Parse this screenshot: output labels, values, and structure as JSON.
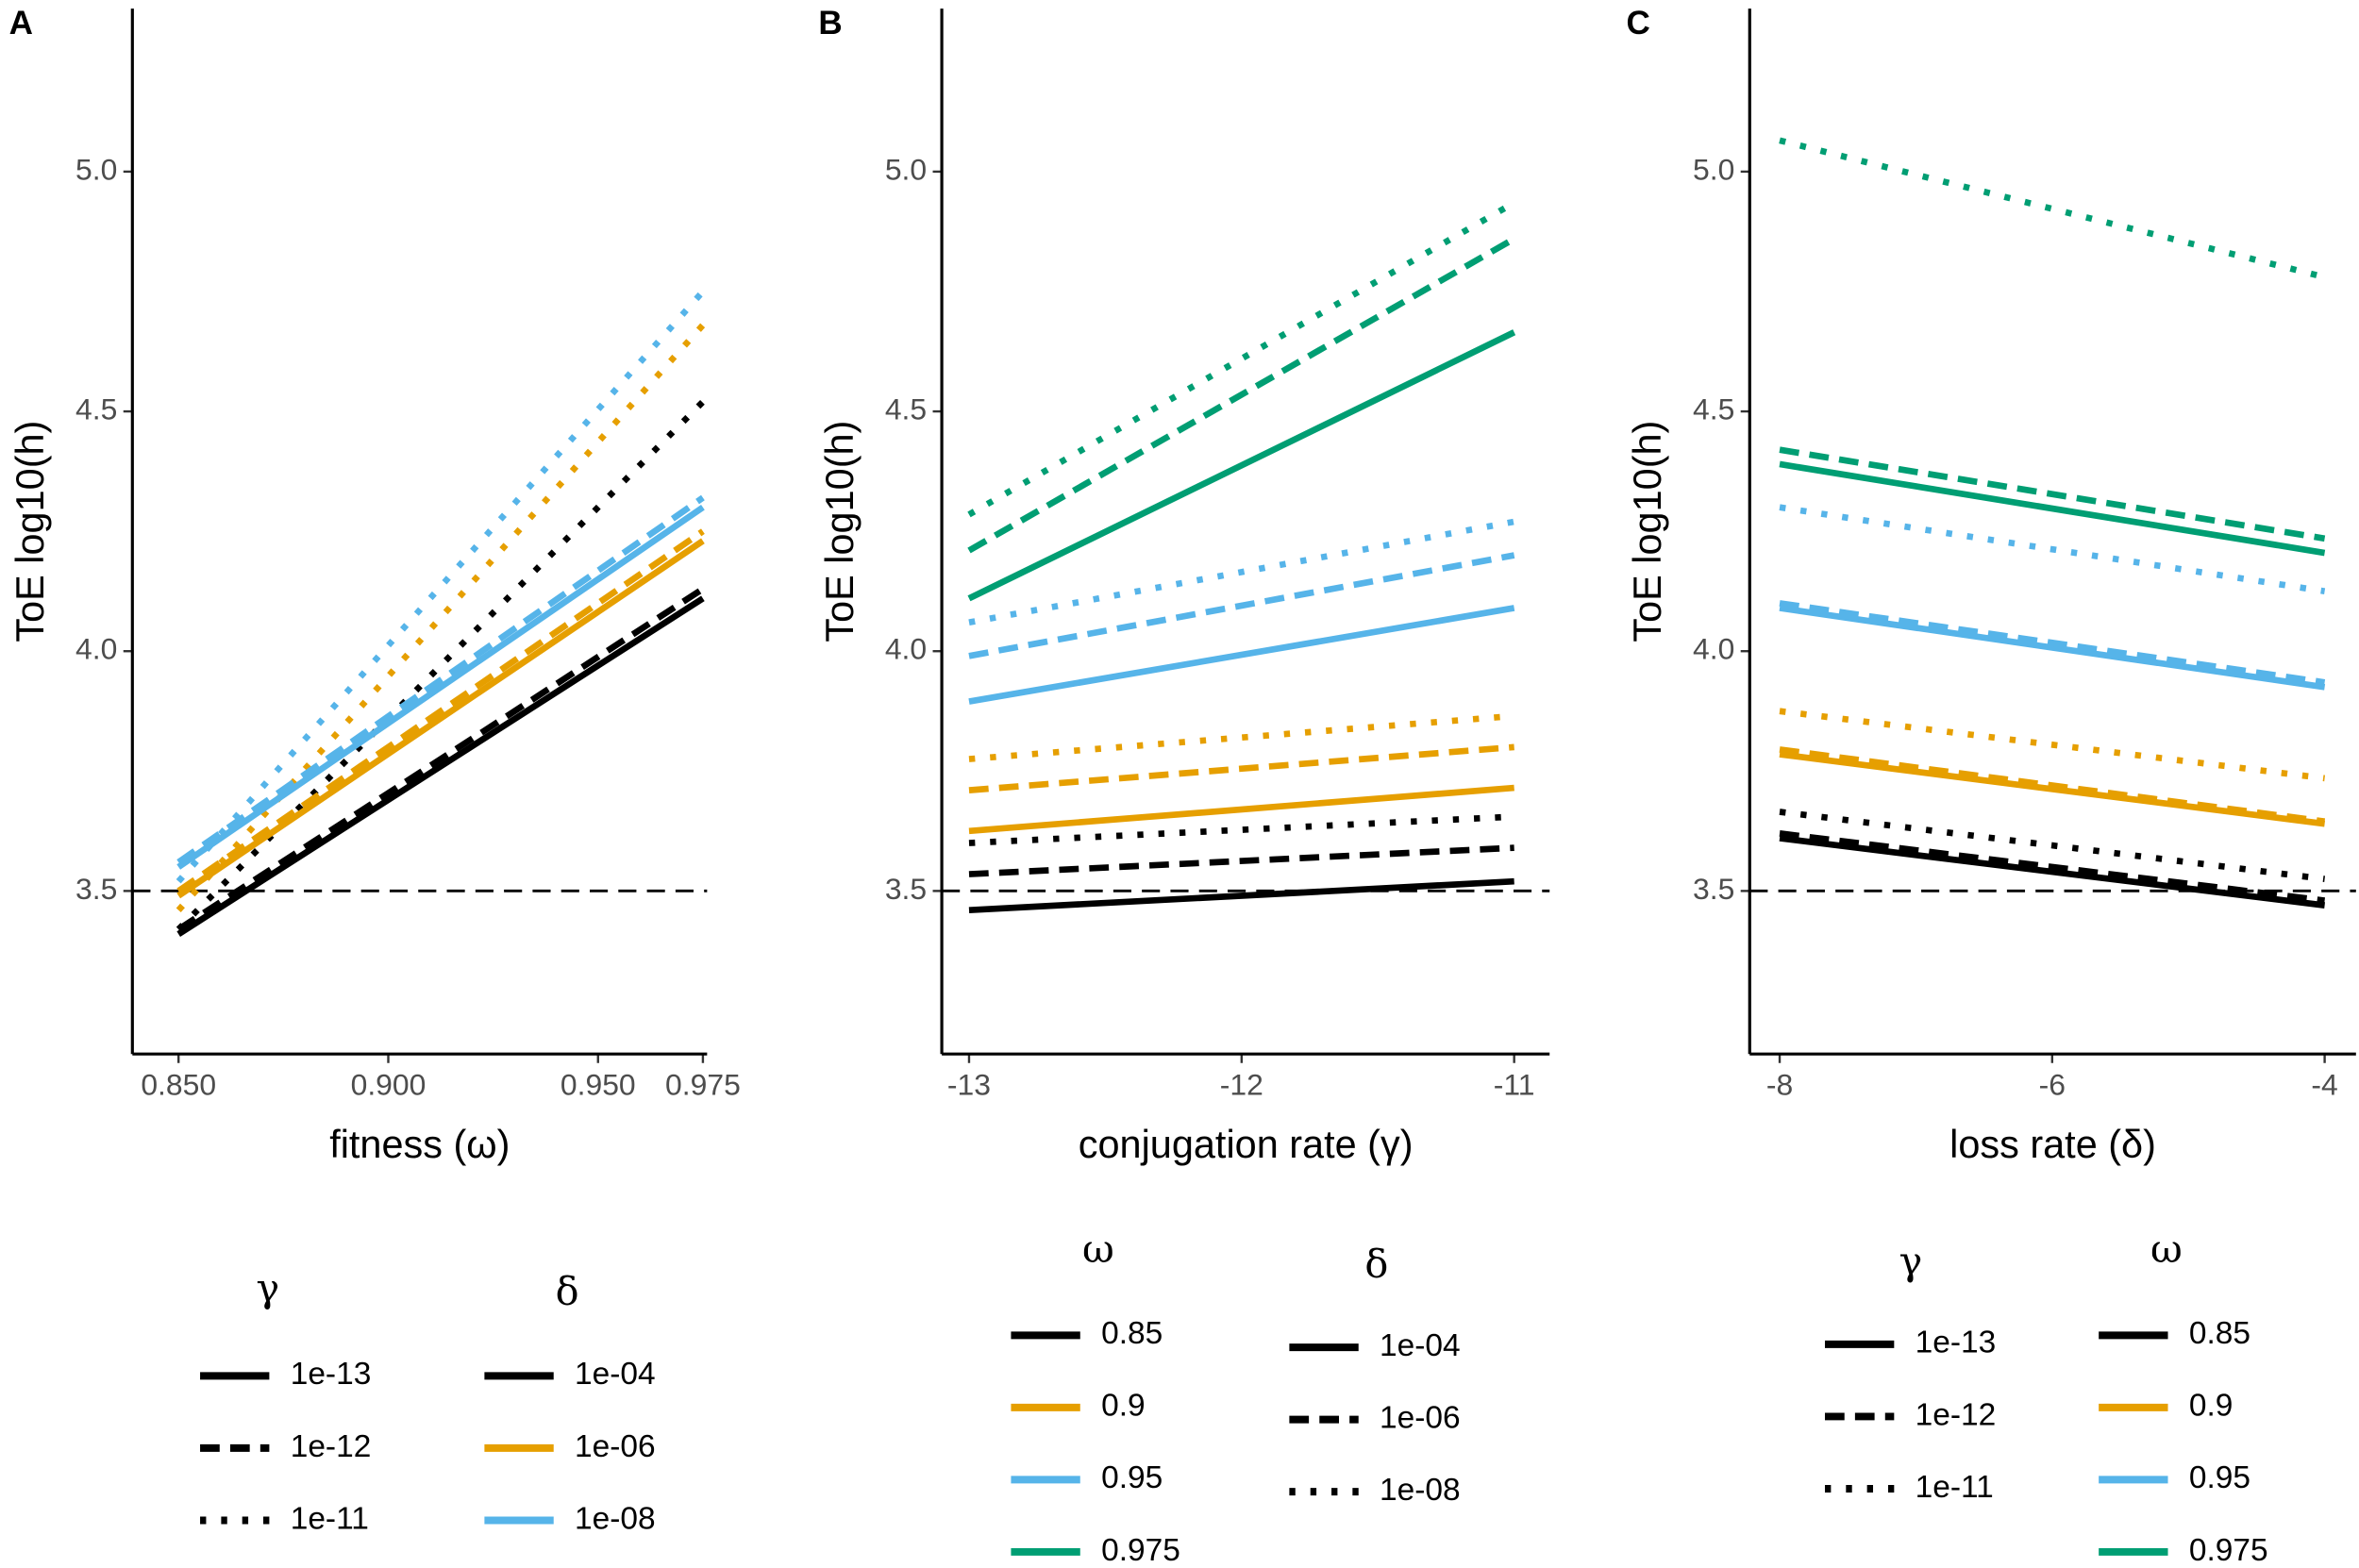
{
  "chart_data": [
    {
      "type": "line",
      "panel_label": "A",
      "xlabel": "fitness (ω)",
      "ylabel": "ToE log10(h)",
      "x": [
        0.85,
        0.975
      ],
      "xlim": [
        0.839,
        0.976
      ],
      "ylim": [
        3.16,
        5.34
      ],
      "xticks": [
        {
          "value": 0.85,
          "label": "0.850"
        },
        {
          "value": 0.9,
          "label": "0.900"
        },
        {
          "value": 0.95,
          "label": "0.950"
        },
        0.975
      ],
      "yticks": [
        3.5,
        {
          "value": 4.0,
          "label": "4.0"
        },
        4.5,
        {
          "value": 5.0,
          "label": "5.0"
        }
      ],
      "hline": 3.5,
      "series": [
        {
          "color": "#000000",
          "linetype": "solid",
          "values": [
            3.41,
            4.11
          ]
        },
        {
          "color": "#000000",
          "linetype": "dashed",
          "values": [
            3.42,
            4.13
          ]
        },
        {
          "color": "#000000",
          "linetype": "dotted",
          "values": [
            3.42,
            4.52
          ]
        },
        {
          "color": "#E69F00",
          "linetype": "solid",
          "values": [
            3.49,
            4.23
          ]
        },
        {
          "color": "#E69F00",
          "linetype": "dashed",
          "values": [
            3.5,
            4.25
          ]
        },
        {
          "color": "#E69F00",
          "linetype": "dotted",
          "values": [
            3.46,
            4.68
          ]
        },
        {
          "color": "#56B4E9",
          "linetype": "solid",
          "values": [
            3.55,
            4.3
          ]
        },
        {
          "color": "#56B4E9",
          "linetype": "dashed",
          "values": [
            3.56,
            4.32
          ]
        },
        {
          "color": "#56B4E9",
          "linetype": "dotted",
          "values": [
            3.52,
            4.75
          ]
        }
      ],
      "legends": [
        {
          "title": "γ",
          "entries": [
            {
              "label": "1e-13",
              "linetype": "solid"
            },
            {
              "label": "1e-12",
              "linetype": "dashed"
            },
            {
              "label": "1e-11",
              "linetype": "dotted"
            }
          ]
        },
        {
          "title": "δ",
          "entries": [
            {
              "label": "1e-04",
              "color": "#000000"
            },
            {
              "label": "1e-06",
              "color": "#E69F00"
            },
            {
              "label": "1e-08",
              "color": "#56B4E9"
            }
          ]
        }
      ]
    },
    {
      "type": "line",
      "panel_label": "B",
      "xlabel": "conjugation rate (γ)",
      "ylabel": "ToE log10(h)",
      "x": [
        -13,
        -11
      ],
      "xlim": [
        -13.1,
        -10.87
      ],
      "ylim": [
        3.16,
        5.34
      ],
      "xticks": [
        -13,
        -12,
        -11
      ],
      "yticks": [
        3.5,
        {
          "value": 4.0,
          "label": "4.0"
        },
        4.5,
        {
          "value": 5.0,
          "label": "5.0"
        }
      ],
      "hline": 3.5,
      "series": [
        {
          "color": "#000000",
          "linetype": "solid",
          "values": [
            3.46,
            3.52
          ]
        },
        {
          "color": "#000000",
          "linetype": "dashed",
          "values": [
            3.535,
            3.59
          ]
        },
        {
          "color": "#000000",
          "linetype": "dotted",
          "values": [
            3.6,
            3.655
          ]
        },
        {
          "color": "#E69F00",
          "linetype": "solid",
          "values": [
            3.625,
            3.715
          ]
        },
        {
          "color": "#E69F00",
          "linetype": "dashed",
          "values": [
            3.71,
            3.8
          ]
        },
        {
          "color": "#E69F00",
          "linetype": "dotted",
          "values": [
            3.775,
            3.865
          ]
        },
        {
          "color": "#56B4E9",
          "linetype": "solid",
          "values": [
            3.895,
            4.09
          ]
        },
        {
          "color": "#56B4E9",
          "linetype": "dashed",
          "values": [
            3.99,
            4.2
          ]
        },
        {
          "color": "#56B4E9",
          "linetype": "dotted",
          "values": [
            4.06,
            4.27
          ]
        },
        {
          "color": "#009E73",
          "linetype": "solid",
          "values": [
            4.11,
            4.665
          ]
        },
        {
          "color": "#009E73",
          "linetype": "dashed",
          "values": [
            4.21,
            4.86
          ]
        },
        {
          "color": "#009E73",
          "linetype": "dotted",
          "values": [
            4.285,
            4.935
          ]
        }
      ],
      "legends": [
        {
          "title": "ω",
          "entries": [
            {
              "label": "0.85",
              "color": "#000000"
            },
            {
              "label": "0.9",
              "color": "#E69F00"
            },
            {
              "label": "0.95",
              "color": "#56B4E9"
            },
            {
              "label": "0.975",
              "color": "#009E73"
            }
          ]
        },
        {
          "title": "δ",
          "entries": [
            {
              "label": "1e-04",
              "linetype": "solid"
            },
            {
              "label": "1e-06",
              "linetype": "dashed"
            },
            {
              "label": "1e-08",
              "linetype": "dotted"
            }
          ]
        }
      ]
    },
    {
      "type": "line",
      "panel_label": "C",
      "xlabel": "loss rate (δ)",
      "ylabel": "ToE log10(h)",
      "x": [
        -8,
        -4
      ],
      "xlim": [
        -8.22,
        -3.77
      ],
      "ylim": [
        3.16,
        5.34
      ],
      "xticks": [
        -8,
        -6,
        -4
      ],
      "yticks": [
        3.5,
        {
          "value": 4.0,
          "label": "4.0"
        },
        4.5,
        {
          "value": 5.0,
          "label": "5.0"
        }
      ],
      "hline": 3.5,
      "series": [
        {
          "color": "#000000",
          "linetype": "solid",
          "values": [
            3.61,
            3.47
          ]
        },
        {
          "color": "#000000",
          "linetype": "dashed",
          "values": [
            3.62,
            3.48
          ]
        },
        {
          "color": "#000000",
          "linetype": "dotted",
          "values": [
            3.665,
            3.525
          ]
        },
        {
          "color": "#E69F00",
          "linetype": "solid",
          "values": [
            3.785,
            3.64
          ]
        },
        {
          "color": "#E69F00",
          "linetype": "dashed",
          "values": [
            3.795,
            3.645
          ]
        },
        {
          "color": "#E69F00",
          "linetype": "dotted",
          "values": [
            3.875,
            3.735
          ]
        },
        {
          "color": "#56B4E9",
          "linetype": "solid",
          "values": [
            4.09,
            3.925
          ]
        },
        {
          "color": "#56B4E9",
          "linetype": "dashed",
          "values": [
            4.1,
            3.935
          ]
        },
        {
          "color": "#56B4E9",
          "linetype": "dotted",
          "values": [
            4.3,
            4.125
          ]
        },
        {
          "color": "#009E73",
          "linetype": "solid",
          "values": [
            4.39,
            4.205
          ]
        },
        {
          "color": "#009E73",
          "linetype": "dashed",
          "values": [
            4.42,
            4.235
          ]
        },
        {
          "color": "#009E73",
          "linetype": "dotted",
          "values": [
            5.065,
            4.78
          ]
        }
      ],
      "legends": [
        {
          "title": "γ",
          "entries": [
            {
              "label": "1e-13",
              "linetype": "solid"
            },
            {
              "label": "1e-12",
              "linetype": "dashed"
            },
            {
              "label": "1e-11",
              "linetype": "dotted"
            }
          ]
        },
        {
          "title": "ω",
          "entries": [
            {
              "label": "0.85",
              "color": "#000000"
            },
            {
              "label": "0.9",
              "color": "#E69F00"
            },
            {
              "label": "0.95",
              "color": "#56B4E9"
            },
            {
              "label": "0.975",
              "color": "#009E73"
            }
          ]
        }
      ]
    }
  ]
}
